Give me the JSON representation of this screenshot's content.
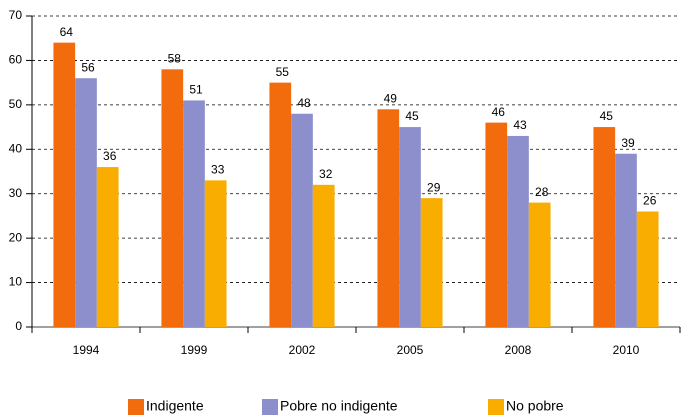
{
  "chart_data": {
    "type": "bar",
    "categories": [
      "1994",
      "1999",
      "2002",
      "2005",
      "2008",
      "2010"
    ],
    "series": [
      {
        "name": "Indigente",
        "color": "#f26b0c",
        "values": [
          64,
          58,
          55,
          49,
          46,
          45
        ]
      },
      {
        "name": "Pobre no indigente",
        "color": "#8c8fcc",
        "values": [
          56,
          51,
          48,
          45,
          43,
          39
        ]
      },
      {
        "name": "No pobre",
        "color": "#f9ad00",
        "values": [
          36,
          33,
          32,
          29,
          28,
          26
        ]
      }
    ],
    "ylim": [
      0,
      70
    ],
    "yticks": [
      0,
      10,
      20,
      30,
      40,
      50,
      60,
      70
    ],
    "grid": true,
    "legend": "bottom"
  }
}
